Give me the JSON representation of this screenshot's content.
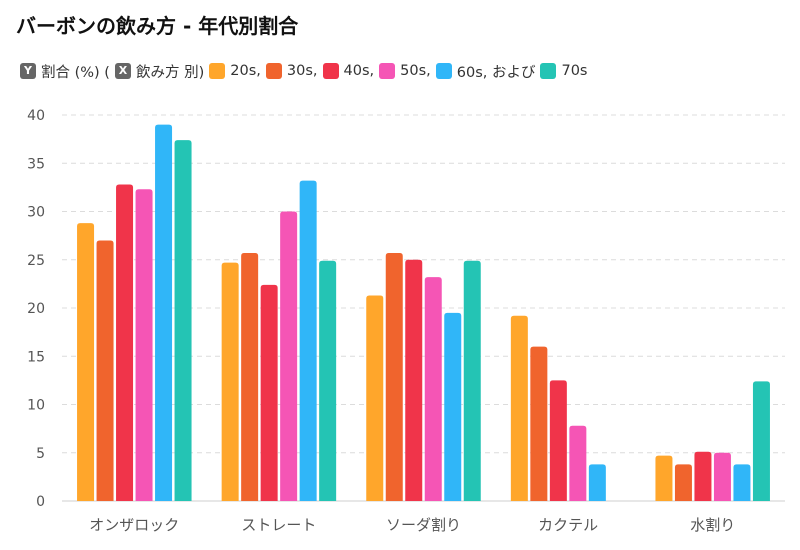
{
  "chart_data": {
    "type": "bar",
    "title": "バーボンの飲み方 - 年代別割合",
    "legend_prefix": {
      "y_badge": "Y",
      "y_text": "割合 (%) (",
      "x_badge": "X",
      "x_text": "飲み方 別)"
    },
    "categories": [
      "オンザロック",
      "ストレート",
      "ソーダ割り",
      "カクテル",
      "水割り"
    ],
    "series": [
      {
        "name": "20s,",
        "color": "#FFA62B",
        "values": [
          28.8,
          24.7,
          21.3,
          19.2,
          4.7
        ]
      },
      {
        "name": "30s,",
        "color": "#F0642D",
        "values": [
          27.0,
          25.7,
          25.7,
          16.0,
          3.8
        ]
      },
      {
        "name": "40s,",
        "color": "#F0344A",
        "values": [
          32.8,
          22.4,
          25.0,
          12.5,
          5.1
        ]
      },
      {
        "name": "50s,",
        "color": "#F555B5",
        "values": [
          32.3,
          30.0,
          23.2,
          7.8,
          5.0
        ]
      },
      {
        "name": "60s, および",
        "color": "#30B6F8",
        "values": [
          39.0,
          33.2,
          19.5,
          3.8,
          3.8
        ]
      },
      {
        "name": "70s",
        "color": "#24C4B4",
        "values": [
          37.4,
          24.9,
          24.9,
          0,
          12.4
        ]
      }
    ],
    "ylim": [
      0,
      40
    ],
    "yticks": [
      0,
      5,
      10,
      15,
      20,
      25,
      30,
      35,
      40
    ],
    "grid": true,
    "legend_position": "top-left"
  }
}
